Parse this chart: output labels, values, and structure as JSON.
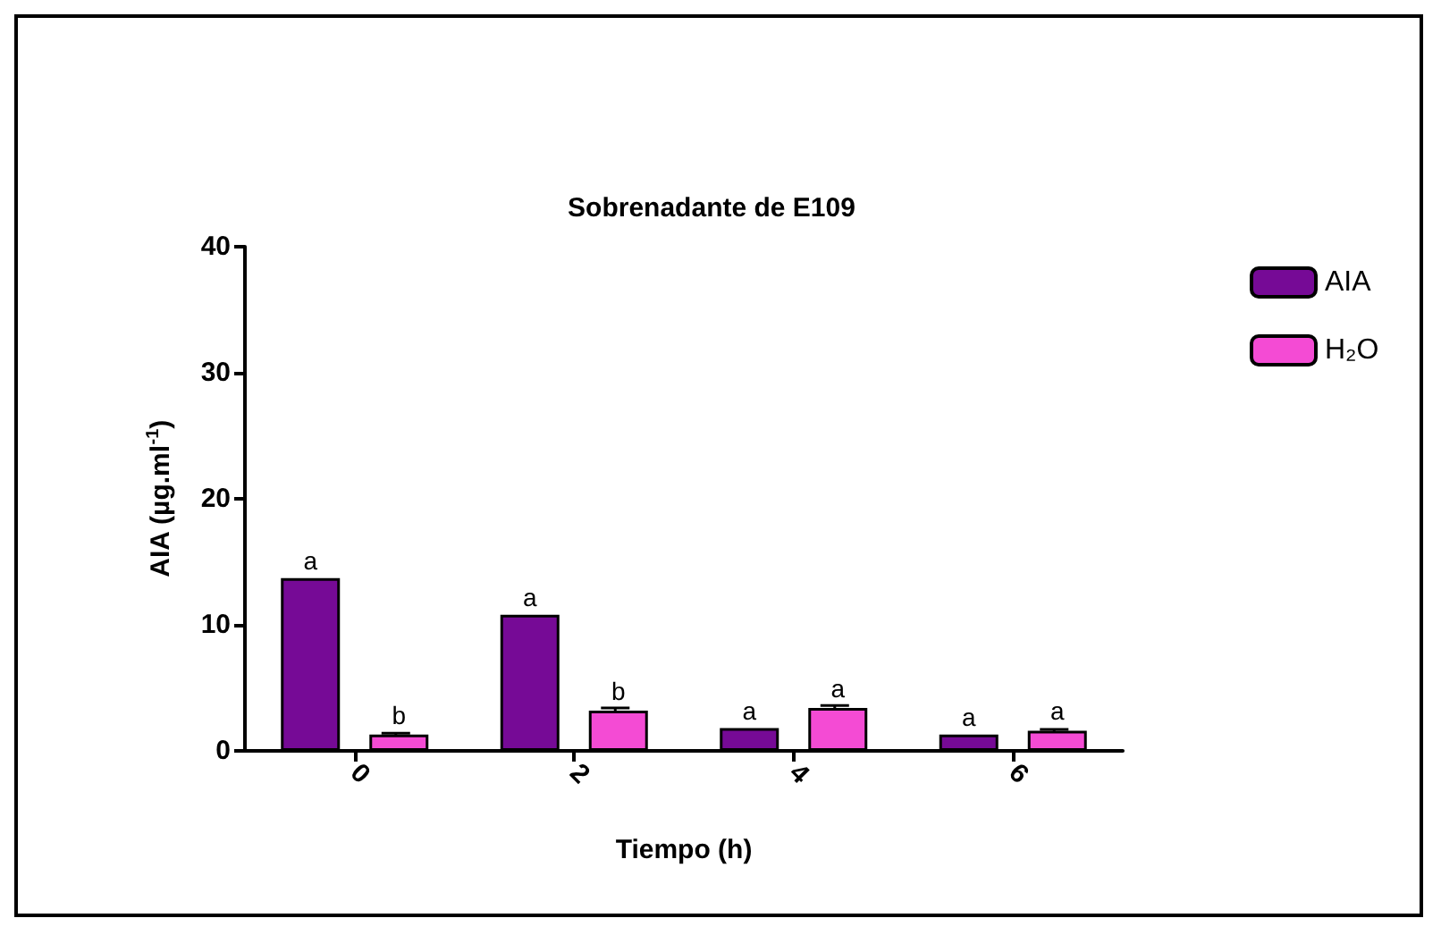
{
  "chart_data": {
    "type": "bar",
    "title": "Sobrenadante de E109",
    "xlabel": "Tiempo (h)",
    "ylabel": "AIA (µg.ml$^{-1}$)",
    "categories": [
      "0",
      "2",
      "4",
      "6"
    ],
    "series": [
      {
        "name": "AIA",
        "color": "#760a96",
        "values": [
          13.7,
          10.8,
          1.8,
          1.3
        ],
        "value_labels": [
          "a",
          "a",
          "a",
          "a"
        ]
      },
      {
        "name": "H₂O",
        "color": "#f44bd4",
        "values": [
          1.3,
          3.2,
          3.4,
          1.6
        ],
        "errors": [
          0.1,
          0.2,
          0.2,
          0.1
        ],
        "value_labels": [
          "b",
          "b",
          "a",
          "a"
        ]
      }
    ],
    "ylim": [
      0,
      40
    ],
    "yticks": [
      0,
      10,
      20,
      30,
      40
    ],
    "grid": false,
    "legend": "top right"
  }
}
